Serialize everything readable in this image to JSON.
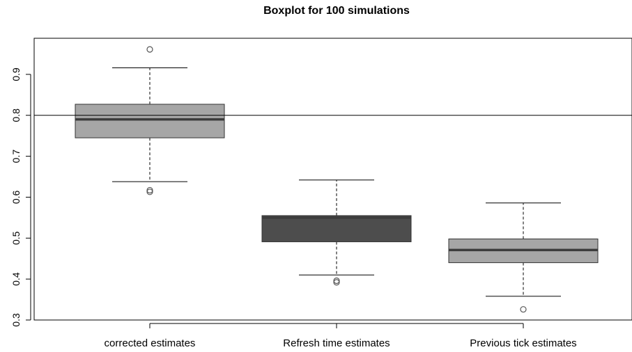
{
  "chart_data": {
    "type": "boxplot",
    "title": "Boxplot for 100 simulations",
    "xlabel": "",
    "ylabel": "",
    "ylim": [
      0.3,
      0.96
    ],
    "y_ticks": [
      "0.3",
      "0.4",
      "0.5",
      "0.6",
      "0.7",
      "0.8",
      "0.9"
    ],
    "reference_line": 0.8,
    "grid": false,
    "categories": [
      "corrected estimates",
      "Refresh time estimates",
      "Previous tick estimates"
    ],
    "boxes": [
      {
        "label": "corrected estimates",
        "whisker_low": 0.638,
        "q1": 0.745,
        "median": 0.79,
        "q3": 0.827,
        "whisker_high": 0.916,
        "outliers": [
          0.961,
          0.617,
          0.613
        ],
        "color": "#a6a6a6"
      },
      {
        "label": "Refresh time estimates",
        "whisker_low": 0.41,
        "q1": 0.491,
        "median": 0.55,
        "q3": 0.555,
        "whisker_high": 0.642,
        "outliers": [
          0.396,
          0.392
        ],
        "color": "#4d4d4d"
      },
      {
        "label": "Previous tick estimates",
        "whisker_low": 0.358,
        "q1": 0.44,
        "median": 0.471,
        "q3": 0.498,
        "whisker_high": 0.586,
        "outliers": [
          0.326
        ],
        "color": "#a6a6a6"
      }
    ]
  }
}
